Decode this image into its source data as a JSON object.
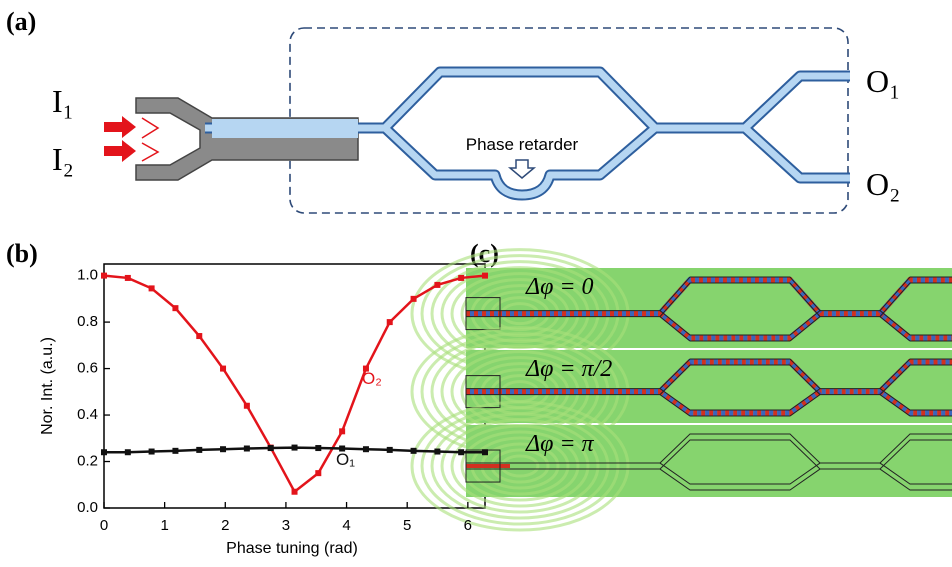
{
  "panels": {
    "a": {
      "label": "(a)",
      "inputs": [
        "I₁",
        "I₂"
      ],
      "outputs": [
        "O₁",
        "O₂"
      ],
      "annotation": "Phase retarder"
    },
    "b": {
      "label": "(b)"
    },
    "c": {
      "label": "(c)",
      "strips": [
        "Δφ = 0",
        "Δφ = π/2",
        "Δφ = π"
      ]
    }
  },
  "chart_data": {
    "type": "line",
    "x_label": "Phase tuning (rad)",
    "y_label": "Nor. Int. (a.u.)",
    "x": [
      0,
      0.393,
      0.785,
      1.178,
      1.571,
      1.963,
      2.356,
      2.749,
      3.142,
      3.534,
      3.927,
      4.32,
      4.712,
      5.105,
      5.498,
      5.89,
      6.283
    ],
    "series": [
      {
        "name": "O₂",
        "color": "#e3141b",
        "values": [
          1.0,
          0.99,
          0.945,
          0.86,
          0.74,
          0.6,
          0.44,
          0.26,
          0.07,
          0.15,
          0.33,
          0.6,
          0.8,
          0.9,
          0.96,
          0.99,
          1.0
        ]
      },
      {
        "name": "O₁",
        "color": "#111111",
        "values": [
          0.24,
          0.24,
          0.243,
          0.246,
          0.25,
          0.253,
          0.256,
          0.258,
          0.26,
          0.258,
          0.256,
          0.253,
          0.25,
          0.246,
          0.243,
          0.24,
          0.24
        ]
      }
    ],
    "xlim": [
      0,
      6.283
    ],
    "xticks": [
      0,
      1,
      2,
      3,
      4,
      5,
      6
    ],
    "ylim": [
      0,
      1.05
    ],
    "yticks": [
      {
        "value": 0,
        "label": "0.0"
      },
      {
        "value": 0.2,
        "label": "0.2"
      },
      {
        "value": 0.4,
        "label": "0.4"
      },
      {
        "value": 0.6,
        "label": "0.6"
      },
      {
        "value": 0.8,
        "label": "0.8"
      },
      {
        "value": 1.0,
        "label": "1.0"
      }
    ],
    "grid": false
  }
}
